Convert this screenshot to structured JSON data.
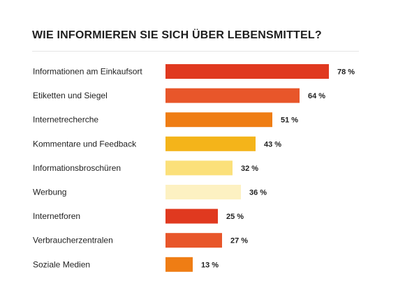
{
  "chart_data": {
    "type": "bar",
    "orientation": "horizontal",
    "title": "WIE INFORMIEREN SIE SICH ÜBER LEBENSMITTEL?",
    "categories": [
      "Informationen am Einkaufsort",
      "Etiketten und Siegel",
      "Internetrecherche",
      "Kommentare und Feedback",
      "Informationsbroschüren",
      "Werbung",
      "Internetforen",
      "Verbraucherzentralen",
      "Soziale Medien"
    ],
    "values": [
      78,
      64,
      51,
      43,
      32,
      36,
      25,
      27,
      13
    ],
    "value_labels": [
      "78 %",
      "64 %",
      "51 %",
      "43 %",
      "32 %",
      "36 %",
      "25 %",
      "27 %",
      "13 %"
    ],
    "unit": "%",
    "colors": [
      "#e0391f",
      "#e8562a",
      "#ef7d14",
      "#f4b41a",
      "#fbe07a",
      "#fdf1c2",
      "#e0391f",
      "#e8562a",
      "#ef7d14"
    ],
    "xlim": [
      0,
      80
    ],
    "grid": false,
    "legend": "none"
  }
}
